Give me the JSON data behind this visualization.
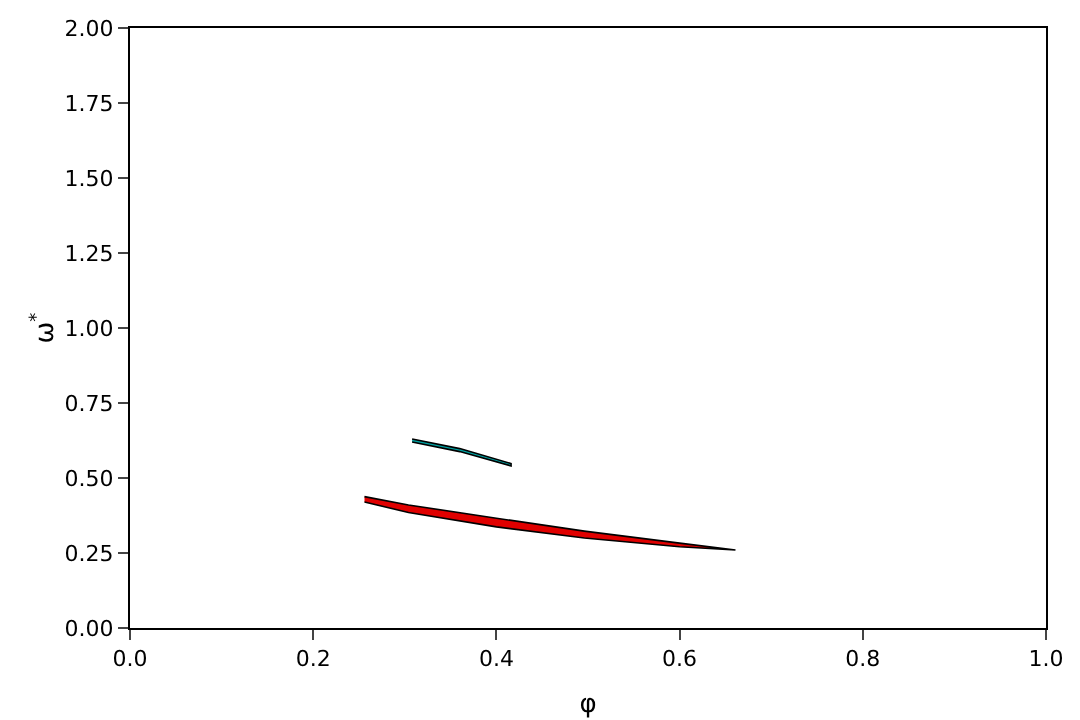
{
  "chart_data": {
    "type": "area",
    "xlabel": "φ",
    "ylabel": "ω$^{*}$",
    "xlim": [
      0,
      1
    ],
    "xticks": [
      {
        "value": 0,
        "label": "0.0"
      },
      {
        "value": 0.2,
        "label": "0.2"
      },
      {
        "value": 0.4,
        "label": "0.4"
      },
      {
        "value": 0.6,
        "label": "0.6"
      },
      {
        "value": 0.8,
        "label": "0.8"
      },
      {
        "value": 1,
        "label": "1.0"
      }
    ],
    "ylim": [
      0,
      2
    ],
    "yticks": [
      {
        "value": 0,
        "label": "0.00"
      },
      {
        "value": 0.25,
        "label": "0.25"
      },
      {
        "value": 0.5,
        "label": "0.50"
      },
      {
        "value": 0.75,
        "label": "0.75"
      },
      {
        "value": 1,
        "label": "1.00"
      },
      {
        "value": 1.25,
        "label": "1.25"
      },
      {
        "value": 1.5,
        "label": "1.50"
      },
      {
        "value": 1.75,
        "label": "1.75"
      },
      {
        "value": 2,
        "label": "2.00"
      }
    ],
    "grid": false,
    "series": [
      {
        "color": "#e00000",
        "x": [
          0.256,
          0.304,
          0.4,
          0.496,
          0.6,
          0.661,
          0.6,
          0.496,
          0.4,
          0.304,
          0.256
        ],
        "values": [
          0.438,
          0.41,
          0.366,
          0.323,
          0.283,
          0.26,
          0.271,
          0.3,
          0.337,
          0.385,
          0.42
        ]
      },
      {
        "color": "#00a0a0",
        "x": [
          0.308,
          0.36,
          0.416,
          0.416,
          0.36,
          0.308
        ],
        "values": [
          0.63,
          0.598,
          0.548,
          0.54,
          0.588,
          0.62
        ]
      }
    ]
  }
}
